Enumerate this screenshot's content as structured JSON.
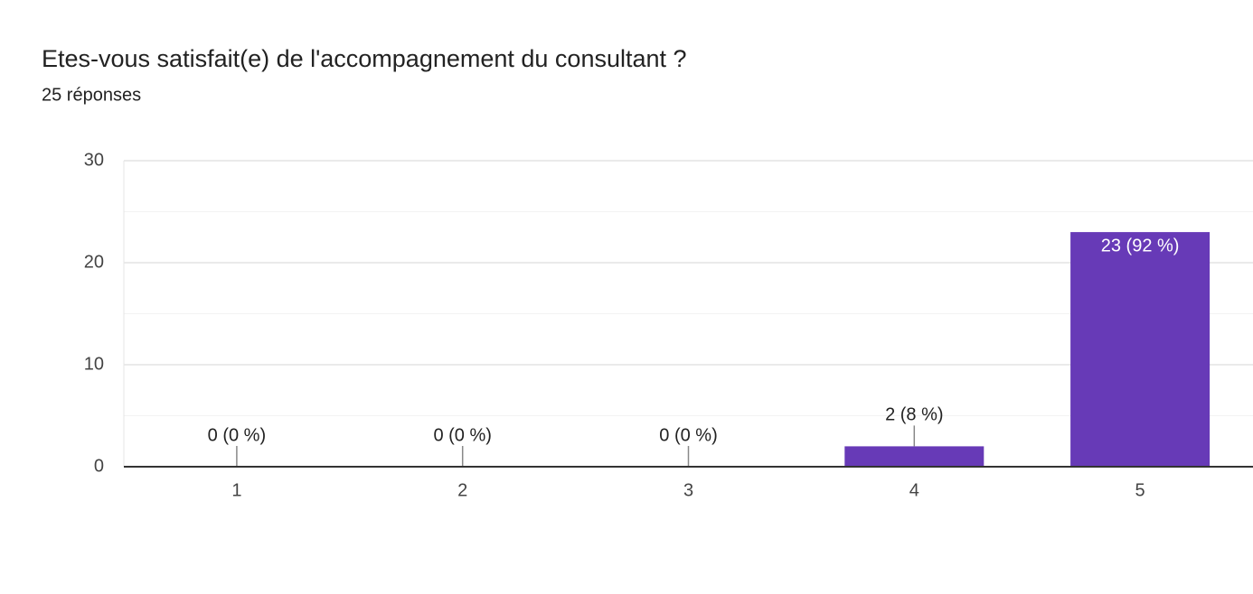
{
  "chart_data": {
    "type": "bar",
    "title": "Etes-vous satisfait(e) de l'accompagnement du consultant  ?",
    "subtitle": "25 réponses",
    "categories": [
      "1",
      "2",
      "3",
      "4",
      "5"
    ],
    "values": [
      0,
      0,
      0,
      2,
      23
    ],
    "value_labels": [
      "0 (0 %)",
      "0 (0 %)",
      "0 (0 %)",
      "2 (8 %)",
      "23 (92 %)"
    ],
    "color": "#673ab7",
    "ylim": [
      0,
      30
    ],
    "yticks": [
      0,
      10,
      20,
      30
    ],
    "minor_yticks": [
      5,
      15,
      25
    ],
    "grid": true
  }
}
